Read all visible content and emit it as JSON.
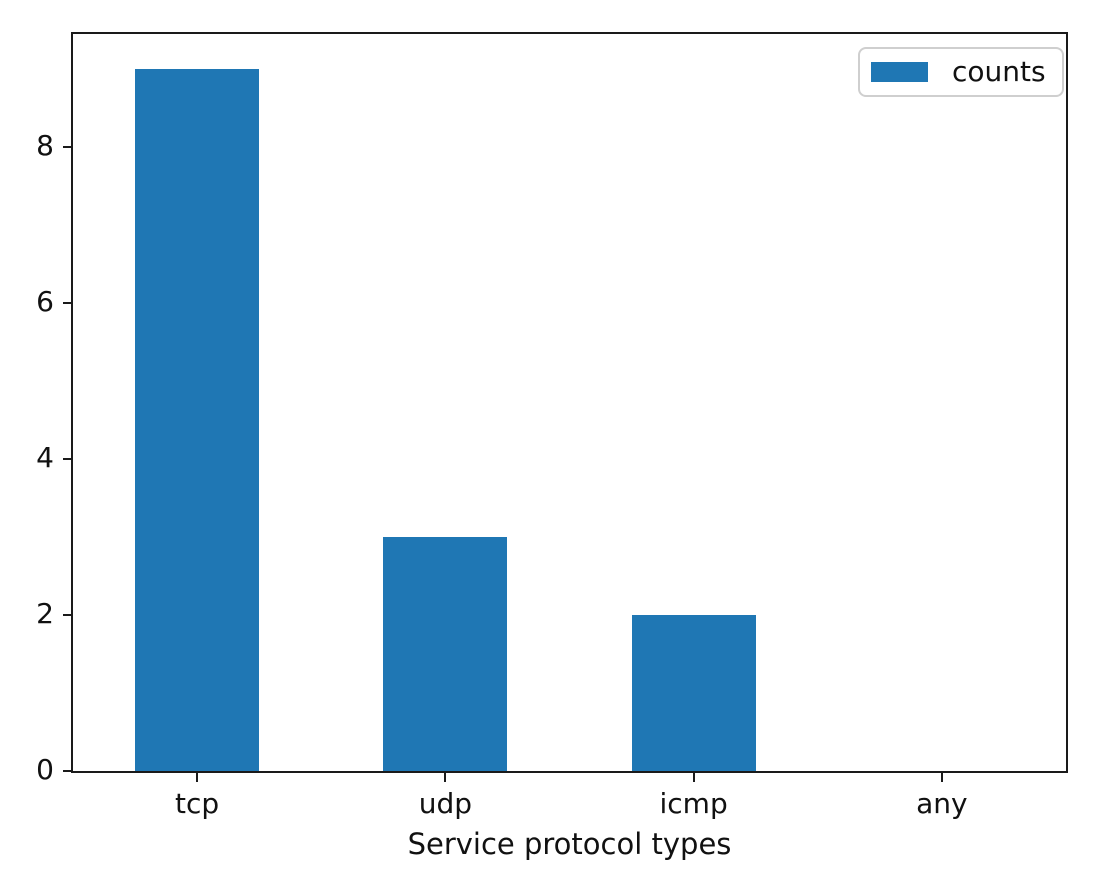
{
  "chart_data": {
    "type": "bar",
    "title": "",
    "categories": [
      "tcp",
      "udp",
      "icmp",
      "any"
    ],
    "series": [
      {
        "name": "counts",
        "values": [
          9,
          3,
          2,
          0
        ]
      }
    ],
    "xlabel": "Service protocol types",
    "ylabel": "",
    "yticks": [
      0,
      2,
      4,
      6,
      8
    ],
    "ylim": [
      0,
      9.45
    ],
    "bar_color": "#1f77b4",
    "axis_color": "#1a1a1a",
    "legend": {
      "position": "upper right",
      "entries": [
        "counts"
      ]
    },
    "grid": false,
    "background": "#ffffff"
  }
}
